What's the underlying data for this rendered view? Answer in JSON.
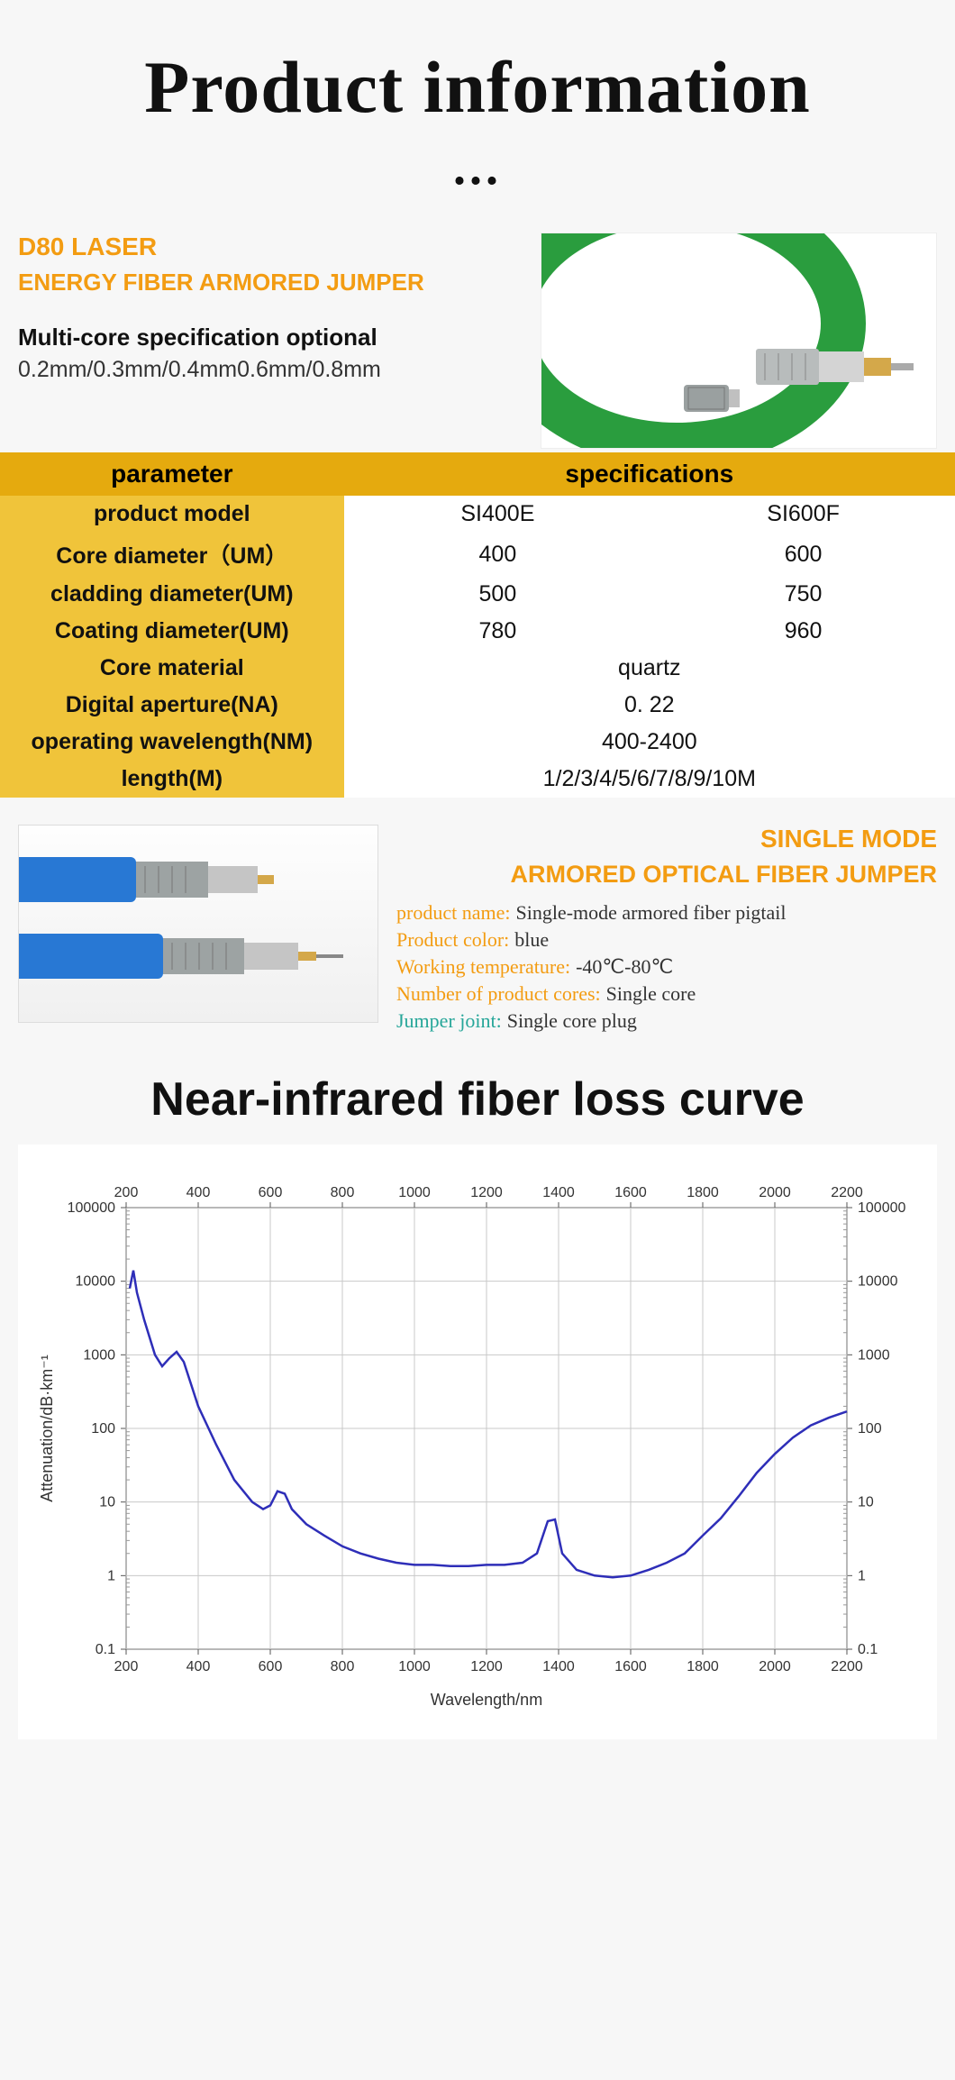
{
  "title": "Product information",
  "dots": "...",
  "d80": {
    "line1": "D80 LASER",
    "line2": "ENERGY FIBER ARMORED JUMPER",
    "multiCore": "Multi-core specification optional",
    "sizes": "0.2mm/0.3mm/0.4mm0.6mm/0.8mm"
  },
  "specTable": {
    "header": {
      "param": "parameter",
      "spec": "specifications"
    },
    "rows": [
      {
        "param": "product model",
        "v1": "SI400E",
        "v2": "SI600F"
      },
      {
        "param": "Core diameter（UM）",
        "v1": "400",
        "v2": "600"
      },
      {
        "param": "cladding diameter(UM)",
        "v1": "500",
        "v2": "750"
      },
      {
        "param": "Coating diameter(UM)",
        "v1": "780",
        "v2": "960"
      },
      {
        "param": "Core material",
        "merged": "quartz"
      },
      {
        "param": "Digital aperture(NA)",
        "merged": "0. 22"
      },
      {
        "param": "operating wavelength(NM)",
        "merged": "400-2400"
      },
      {
        "param": "length(M)",
        "merged": "1/2/3/4/5/6/7/8/9/10M"
      }
    ]
  },
  "singleMode": {
    "line1": "SINGLE MODE",
    "line2": "ARMORED OPTICAL FIBER JUMPER",
    "attrs": [
      {
        "k": "product name:",
        "v": "Single-mode armored fiber pigtail",
        "color": "orange"
      },
      {
        "k": "Product color:",
        "v": "blue",
        "color": "orange"
      },
      {
        "k": "Working temperature:",
        "v": "-40℃-80℃",
        "color": "orange"
      },
      {
        "k": "Number of product cores:",
        "v": "Single core",
        "color": "orange"
      },
      {
        "k": "Jumper joint:",
        "v": "Single core plug",
        "color": "teal"
      }
    ]
  },
  "chart": {
    "title": "Near-infrared fiber loss curve",
    "xlabel": "Wavelength/nm",
    "ylabel": "Attenuation/dB·km⁻¹",
    "xlim": [
      200,
      2200
    ],
    "xticks_top": [
      200,
      400,
      600,
      800,
      1000,
      1200,
      1400,
      1600,
      1800,
      2000,
      2200
    ],
    "xticks_bottom": [
      200,
      400,
      600,
      800,
      1000,
      1200,
      1400,
      1600,
      1800,
      2000,
      2200
    ],
    "ylim_log": [
      0.1,
      100000
    ],
    "yticks": [
      0.1,
      1,
      10,
      100,
      1000,
      10000,
      100000
    ],
    "line_color": "#2e2eb8",
    "grid_color": "#c8c8c8",
    "background_color": "#ffffff",
    "label_fontsize": 18,
    "tick_fontsize": 16,
    "points": [
      [
        210,
        8000
      ],
      [
        220,
        14000
      ],
      [
        230,
        7000
      ],
      [
        250,
        3000
      ],
      [
        280,
        1000
      ],
      [
        300,
        700
      ],
      [
        320,
        900
      ],
      [
        340,
        1100
      ],
      [
        360,
        800
      ],
      [
        400,
        200
      ],
      [
        450,
        60
      ],
      [
        500,
        20
      ],
      [
        550,
        10
      ],
      [
        580,
        8
      ],
      [
        600,
        9
      ],
      [
        620,
        14
      ],
      [
        640,
        13
      ],
      [
        660,
        8
      ],
      [
        700,
        5
      ],
      [
        750,
        3.5
      ],
      [
        800,
        2.5
      ],
      [
        850,
        2
      ],
      [
        900,
        1.7
      ],
      [
        950,
        1.5
      ],
      [
        1000,
        1.4
      ],
      [
        1050,
        1.4
      ],
      [
        1100,
        1.35
      ],
      [
        1150,
        1.35
      ],
      [
        1200,
        1.4
      ],
      [
        1250,
        1.4
      ],
      [
        1300,
        1.5
      ],
      [
        1340,
        2
      ],
      [
        1370,
        5.5
      ],
      [
        1390,
        5.8
      ],
      [
        1410,
        2
      ],
      [
        1450,
        1.2
      ],
      [
        1500,
        1
      ],
      [
        1550,
        0.95
      ],
      [
        1600,
        1
      ],
      [
        1650,
        1.2
      ],
      [
        1700,
        1.5
      ],
      [
        1750,
        2
      ],
      [
        1800,
        3.5
      ],
      [
        1850,
        6
      ],
      [
        1900,
        12
      ],
      [
        1950,
        25
      ],
      [
        2000,
        45
      ],
      [
        2050,
        75
      ],
      [
        2100,
        110
      ],
      [
        2150,
        140
      ],
      [
        2200,
        170
      ]
    ]
  }
}
